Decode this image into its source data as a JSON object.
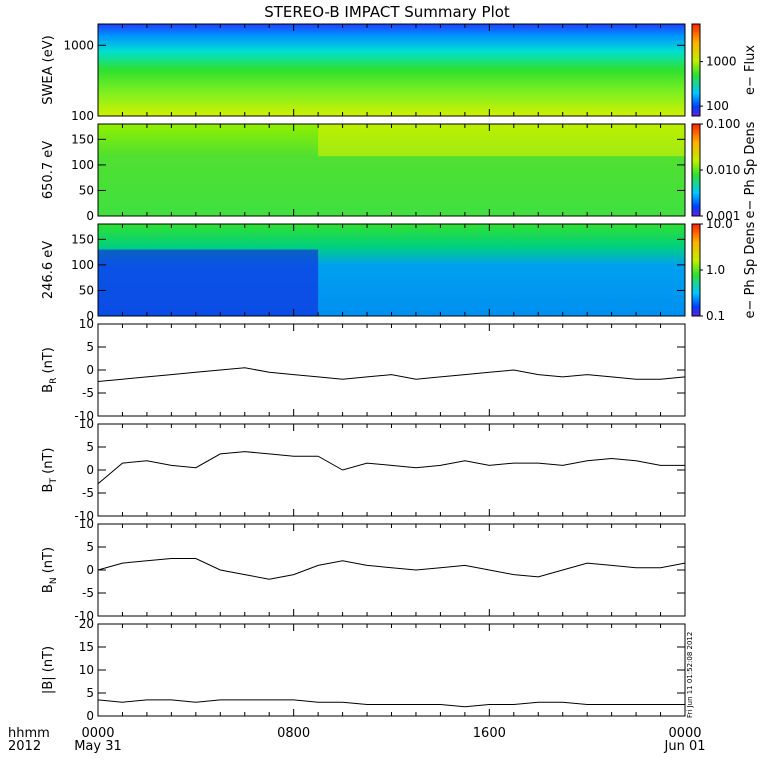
{
  "figure": {
    "title": "STEREO-B IMPACT Summary Plot",
    "footer_left": [
      "hhmm",
      "2012"
    ],
    "stamp": "Fri Jun 11 01:52:08 2012"
  },
  "chart_data": [
    {
      "id": "swea",
      "type": "heatmap",
      "ylabel": "SWEA (eV)",
      "yscale": "log",
      "ylim": [
        100,
        2000
      ],
      "yticks": [
        100,
        1000
      ],
      "ytick_labels": [
        "100",
        "1000"
      ],
      "colorbar": {
        "label": "e− Flux",
        "scale": "log",
        "range": [
          60,
          7000
        ],
        "ticks": [
          100,
          1000
        ],
        "tick_labels": [
          "100",
          "1000"
        ]
      }
    },
    {
      "id": "pad650",
      "type": "heatmap",
      "ylabel": "650.7 eV",
      "ylim": [
        0,
        180
      ],
      "yticks": [
        0,
        50,
        100,
        150
      ],
      "colorbar": {
        "label": "e− Ph Sp Dens",
        "scale": "log",
        "range": [
          0.001,
          0.1
        ],
        "ticks": [
          0.001,
          0.01,
          0.1
        ],
        "tick_labels": [
          "0.001",
          "0.010",
          "0.100"
        ]
      }
    },
    {
      "id": "pad246",
      "type": "heatmap",
      "ylabel": "246.6 eV",
      "ylim": [
        0,
        180
      ],
      "yticks": [
        0,
        50,
        100,
        150
      ],
      "colorbar": {
        "label": "e− Ph Sp Dens",
        "scale": "log",
        "range": [
          0.1,
          10
        ],
        "ticks": [
          0.1,
          1,
          10
        ],
        "tick_labels": [
          "0.1",
          "1.0",
          "10.0"
        ]
      }
    },
    {
      "id": "br",
      "type": "line",
      "ylabel_main": "B",
      "ylabel_sub": "R",
      "ylabel_unit": " (nT)",
      "ylim": [
        -10,
        10
      ],
      "yticks": [
        -10,
        -5,
        0,
        5,
        10
      ],
      "x": [
        0,
        1,
        2,
        3,
        4,
        5,
        6,
        7,
        8,
        9,
        10,
        11,
        12,
        13,
        14,
        15,
        16,
        17,
        18,
        19,
        20,
        21,
        22,
        23,
        24
      ],
      "y": [
        -2.5,
        -2,
        -1.5,
        -1,
        -0.5,
        0,
        0.5,
        -0.5,
        -1,
        -1.5,
        -2,
        -1.5,
        -1,
        -2,
        -1.5,
        -1,
        -0.5,
        0,
        -1,
        -1.5,
        -1,
        -1.5,
        -2,
        -2,
        -1.5
      ]
    },
    {
      "id": "bt",
      "type": "line",
      "ylabel_main": "B",
      "ylabel_sub": "T",
      "ylabel_unit": " (nT)",
      "ylim": [
        -10,
        10
      ],
      "yticks": [
        -10,
        -5,
        0,
        5,
        10
      ],
      "x": [
        0,
        1,
        2,
        3,
        4,
        5,
        6,
        7,
        8,
        9,
        10,
        11,
        12,
        13,
        14,
        15,
        16,
        17,
        18,
        19,
        20,
        21,
        22,
        23,
        24
      ],
      "y": [
        -3,
        1.5,
        2,
        1,
        0.5,
        3.5,
        4,
        3.5,
        3,
        3,
        0,
        1.5,
        1,
        0.5,
        1,
        2,
        1,
        1.5,
        1.5,
        1,
        2,
        2.5,
        2,
        1,
        1
      ]
    },
    {
      "id": "bn",
      "type": "line",
      "ylabel_main": "B",
      "ylabel_sub": "N",
      "ylabel_unit": " (nT)",
      "ylim": [
        -10,
        10
      ],
      "yticks": [
        -10,
        -5,
        0,
        5,
        10
      ],
      "x": [
        0,
        1,
        2,
        3,
        4,
        5,
        6,
        7,
        8,
        9,
        10,
        11,
        12,
        13,
        14,
        15,
        16,
        17,
        18,
        19,
        20,
        21,
        22,
        23,
        24
      ],
      "y": [
        0,
        1.5,
        2,
        2.5,
        2.5,
        0,
        -1,
        -2,
        -1,
        1,
        2,
        1,
        0.5,
        0,
        0.5,
        1,
        0,
        -1,
        -1.5,
        0,
        1.5,
        1,
        0.5,
        0.5,
        1.5
      ]
    },
    {
      "id": "bmag",
      "type": "line",
      "ylabel": "|B| (nT)",
      "ylim": [
        0,
        20
      ],
      "yticks": [
        0,
        5,
        10,
        15,
        20
      ],
      "x": [
        0,
        1,
        2,
        3,
        4,
        5,
        6,
        7,
        8,
        9,
        10,
        11,
        12,
        13,
        14,
        15,
        16,
        17,
        18,
        19,
        20,
        21,
        22,
        23,
        24
      ],
      "y": [
        3.5,
        3,
        3.5,
        3.5,
        3,
        3.5,
        3.5,
        3.5,
        3.5,
        3,
        3,
        2.5,
        2.5,
        2.5,
        2.5,
        2,
        2.5,
        2.5,
        3,
        3,
        2.5,
        2.5,
        2.5,
        2.5,
        2.5
      ]
    }
  ],
  "xaxis": {
    "range": [
      0,
      24
    ],
    "major": [
      0,
      8,
      16,
      24
    ],
    "tick_labels": [
      "0000",
      "0800",
      "1600",
      "0000"
    ],
    "date_labels": [
      "May 31",
      "",
      "",
      "Jun 01"
    ]
  },
  "colors": {
    "line": "#000000",
    "axis": "#000000",
    "background": "#ffffff"
  }
}
